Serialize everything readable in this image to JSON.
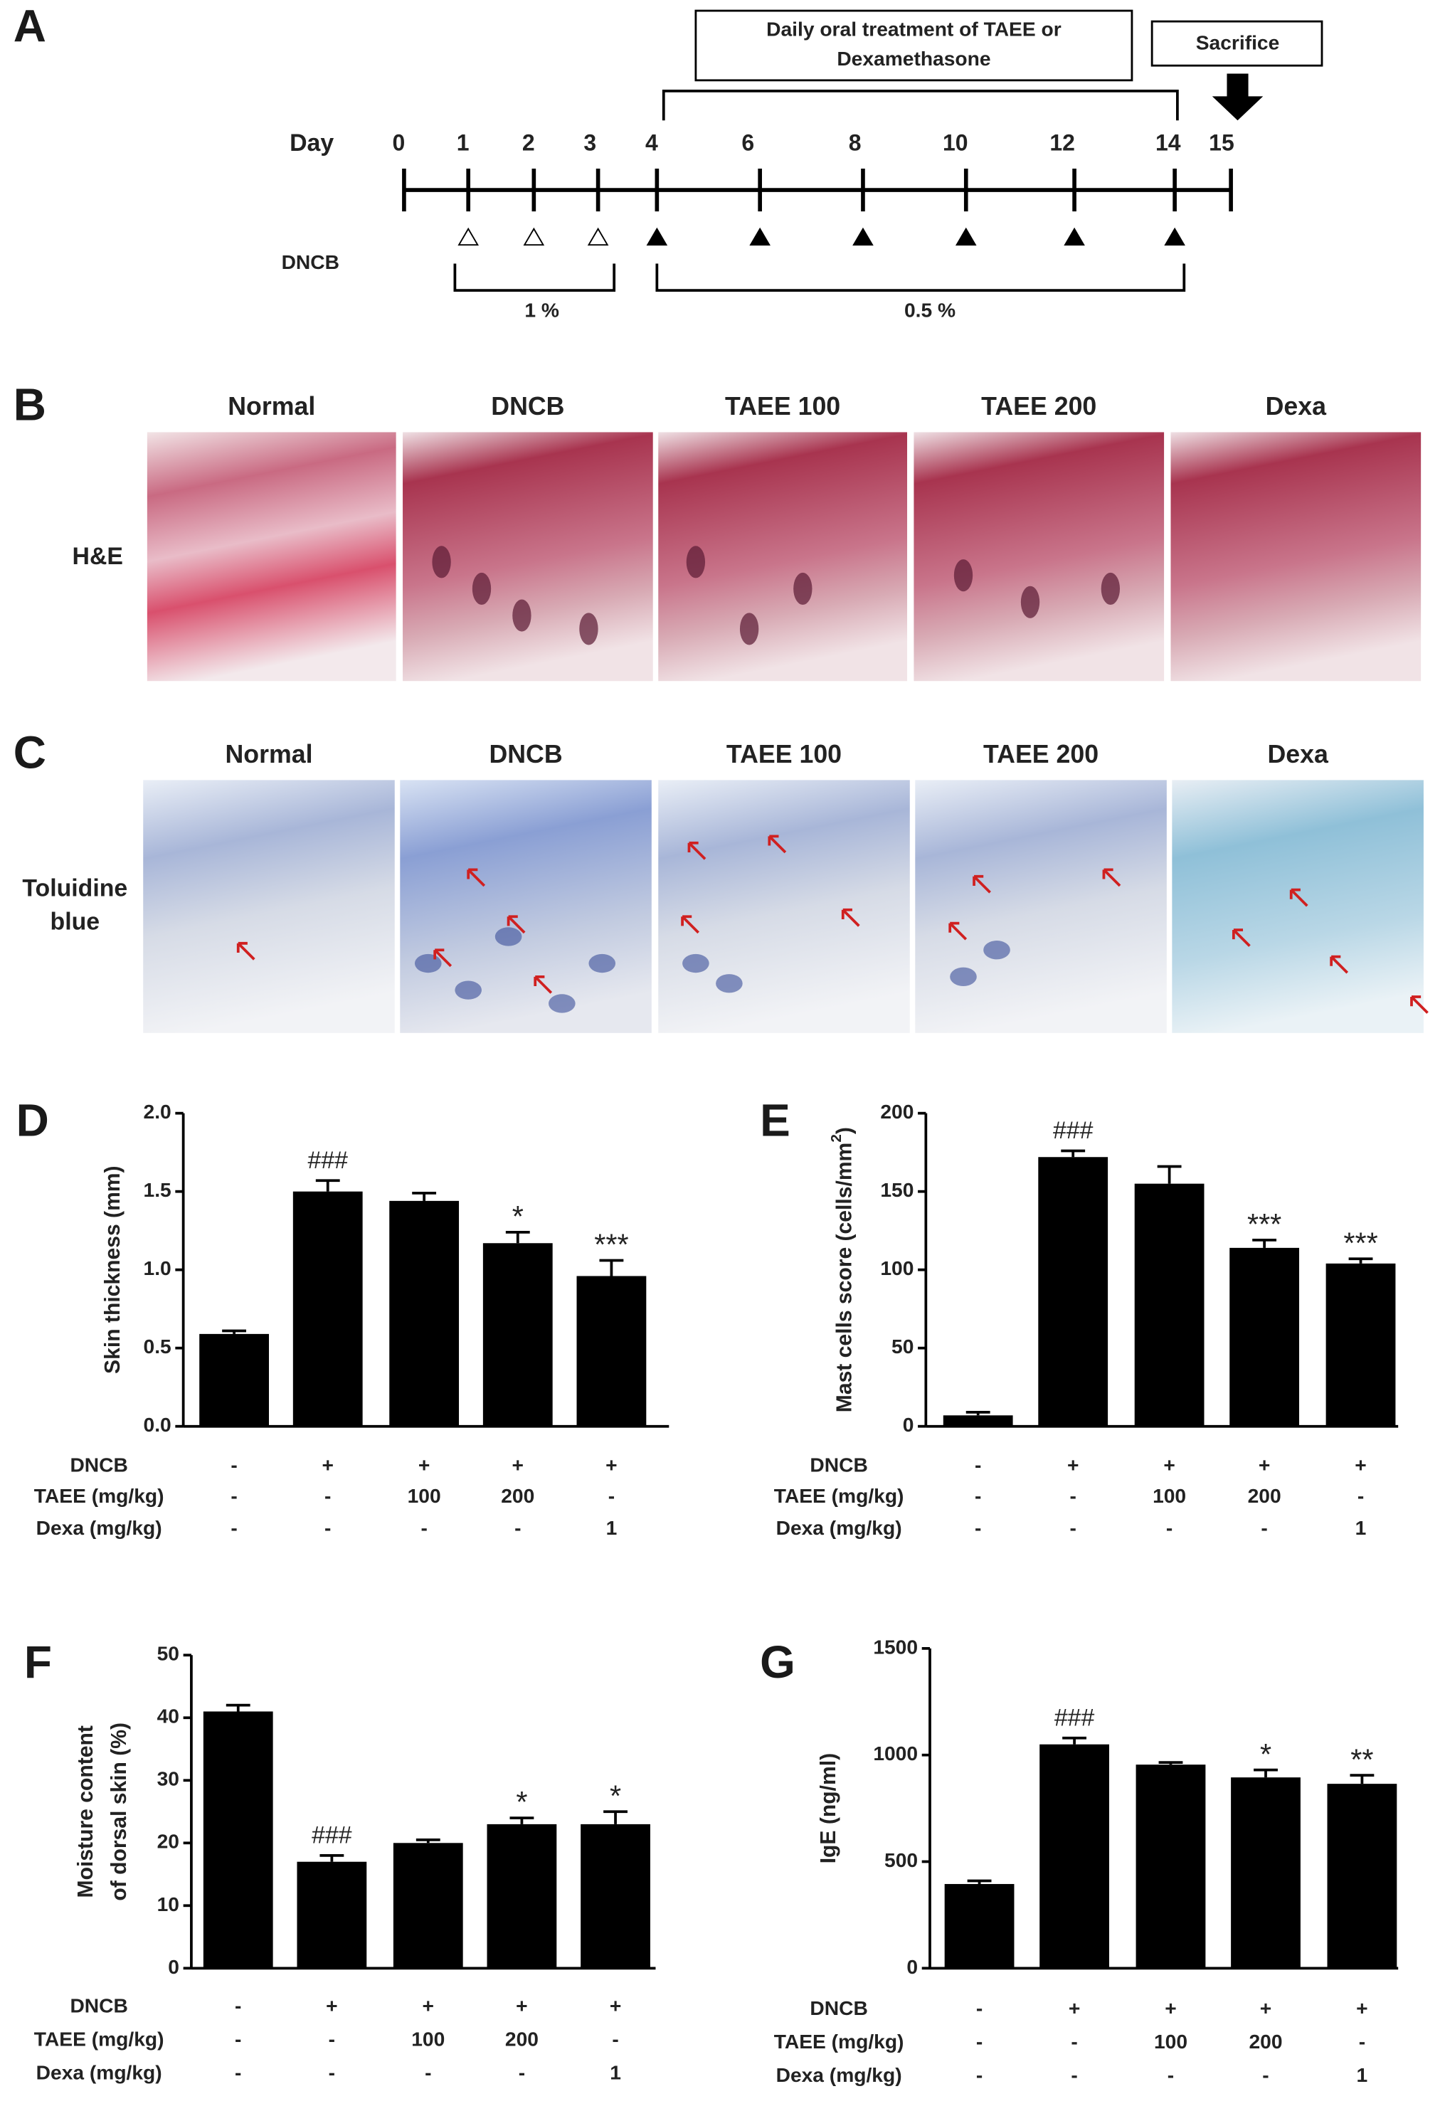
{
  "panel_a": {
    "label": "A",
    "box_lines": [
      "Daily oral treatment of TAEE or",
      "Dexamethasone"
    ],
    "sacrifice": "Sacrifice",
    "day_label": "Day",
    "days": [
      "0",
      "1",
      "2",
      "3",
      "4",
      "6",
      "8",
      "10",
      "12",
      "14",
      "15"
    ],
    "dncb_label": "DNCB",
    "low_dose": "1 %",
    "high_dose": "0.5 %"
  },
  "panel_b": {
    "label": "B",
    "row_label": "H&E",
    "columns": [
      "Normal",
      "DNCB",
      "TAEE 100",
      "TAEE 200",
      "Dexa"
    ]
  },
  "panel_c": {
    "label": "C",
    "row_label": [
      "Toluidine",
      "blue"
    ],
    "columns": [
      "Normal",
      "DNCB",
      "TAEE 100",
      "TAEE 200",
      "Dexa"
    ]
  },
  "chart_data": [
    {
      "type": "bar",
      "panel": "D",
      "ylabel": "Skin thickness (mm)",
      "color": "#000000",
      "ylim": [
        0,
        2
      ],
      "yticks": [
        {
          "value": 0,
          "label": "0.0"
        },
        0.5,
        {
          "value": 1,
          "label": "1.0"
        },
        1.5,
        {
          "value": 2,
          "label": "2.0"
        }
      ],
      "values": [
        0.59,
        1.5,
        1.44,
        1.17,
        0.96
      ],
      "errors": [
        0.02,
        0.07,
        0.05,
        0.07,
        0.1
      ],
      "annotations": [
        null,
        "###",
        null,
        "*",
        "***"
      ],
      "conditions": [
        {
          "label": "DNCB",
          "values": [
            "-",
            "+",
            "+",
            "+",
            "+"
          ]
        },
        {
          "label": "TAEE (mg/kg)",
          "values": [
            "-",
            "-",
            "100",
            "200",
            "-"
          ]
        },
        {
          "label": "Dexa (mg/kg)",
          "values": [
            "-",
            "-",
            "-",
            "-",
            "1"
          ]
        }
      ]
    },
    {
      "type": "bar",
      "panel": "E",
      "ylabel": "Mast cells score (cells/mm",
      "ylabel_sup": "2",
      "ylabel_end": ")",
      "color": "#000000",
      "ylim": [
        0,
        200
      ],
      "yticks": [
        0,
        50,
        100,
        150,
        200
      ],
      "values": [
        7,
        172,
        155,
        114,
        104
      ],
      "errors": [
        2,
        4,
        11,
        5,
        3
      ],
      "annotations": [
        null,
        "###",
        null,
        "***",
        "***"
      ],
      "conditions": [
        {
          "label": "DNCB",
          "values": [
            "-",
            "+",
            "+",
            "+",
            "+"
          ]
        },
        {
          "label": "TAEE (mg/kg)",
          "values": [
            "-",
            "-",
            "100",
            "200",
            "-"
          ]
        },
        {
          "label": "Dexa (mg/kg)",
          "values": [
            "-",
            "-",
            "-",
            "-",
            "1"
          ]
        }
      ]
    },
    {
      "type": "bar",
      "panel": "F",
      "ylabel": [
        "Moisture content",
        "of dorsal skin (%)"
      ],
      "color": "#000000",
      "ylim": [
        0,
        50
      ],
      "yticks": [
        0,
        10,
        20,
        30,
        40,
        50
      ],
      "values": [
        41,
        17,
        20,
        23,
        23
      ],
      "errors": [
        1,
        1,
        0.5,
        1,
        2
      ],
      "annotations": [
        null,
        "###",
        null,
        "*",
        "*"
      ],
      "conditions": [
        {
          "label": "DNCB",
          "values": [
            "-",
            "+",
            "+",
            "+",
            "+"
          ]
        },
        {
          "label": "TAEE (mg/kg)",
          "values": [
            "-",
            "-",
            "100",
            "200",
            "-"
          ]
        },
        {
          "label": "Dexa (mg/kg)",
          "values": [
            "-",
            "-",
            "-",
            "-",
            "1"
          ]
        }
      ]
    },
    {
      "type": "bar",
      "panel": "G",
      "ylabel": "IgE (ng/ml)",
      "color": "#000000",
      "ylim": [
        0,
        1500
      ],
      "yticks": [
        0,
        500,
        1000,
        1500
      ],
      "values": [
        395,
        1050,
        955,
        895,
        865
      ],
      "errors": [
        15,
        30,
        10,
        35,
        40
      ],
      "annotations": [
        null,
        "###",
        null,
        "*",
        "**"
      ],
      "conditions": [
        {
          "label": "DNCB",
          "values": [
            "-",
            "+",
            "+",
            "+",
            "+"
          ]
        },
        {
          "label": "TAEE (mg/kg)",
          "values": [
            "-",
            "-",
            "100",
            "200",
            "-"
          ]
        },
        {
          "label": "Dexa (mg/kg)",
          "values": [
            "-",
            "-",
            "-",
            "-",
            "1"
          ]
        }
      ]
    }
  ]
}
